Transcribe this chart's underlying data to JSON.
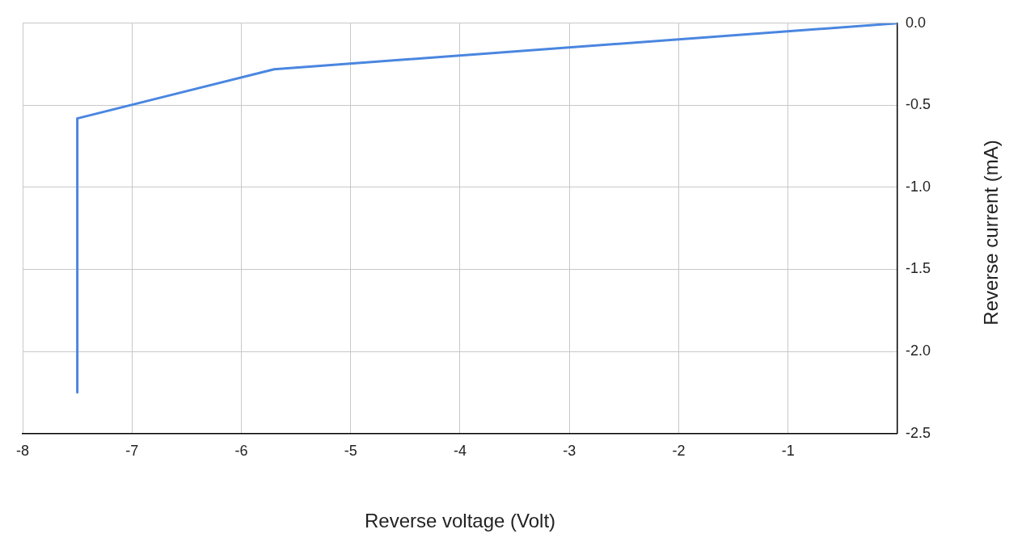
{
  "chart_data": {
    "type": "line",
    "xlabel": "Reverse voltage (Volt)",
    "ylabel": "Reverse current (mA)",
    "x": [
      0,
      -5.7,
      -7.5,
      -7.5
    ],
    "series": [
      {
        "color": "#4a86e0",
        "values": [
          0,
          -0.28,
          -0.58,
          -2.25
        ]
      }
    ],
    "xlim": [
      -8,
      0
    ],
    "xticks": [
      -8,
      -7,
      -6,
      -5,
      -4,
      -3,
      -2,
      -1,
      {
        "value": 0,
        "label": null
      }
    ],
    "ylim": [
      -2.5,
      0
    ],
    "yticks": [
      {
        "value": 0,
        "label": "0.0"
      },
      {
        "value": -0.5,
        "label": "-0.5"
      },
      {
        "value": -1,
        "label": "-1.0"
      },
      {
        "value": -1.5,
        "label": "-1.5"
      },
      {
        "value": -2,
        "label": "-2.0"
      },
      {
        "value": -2.5,
        "label": "-2.5"
      }
    ],
    "grid": true,
    "legend": false,
    "marker": "none",
    "line_style": "solid"
  }
}
